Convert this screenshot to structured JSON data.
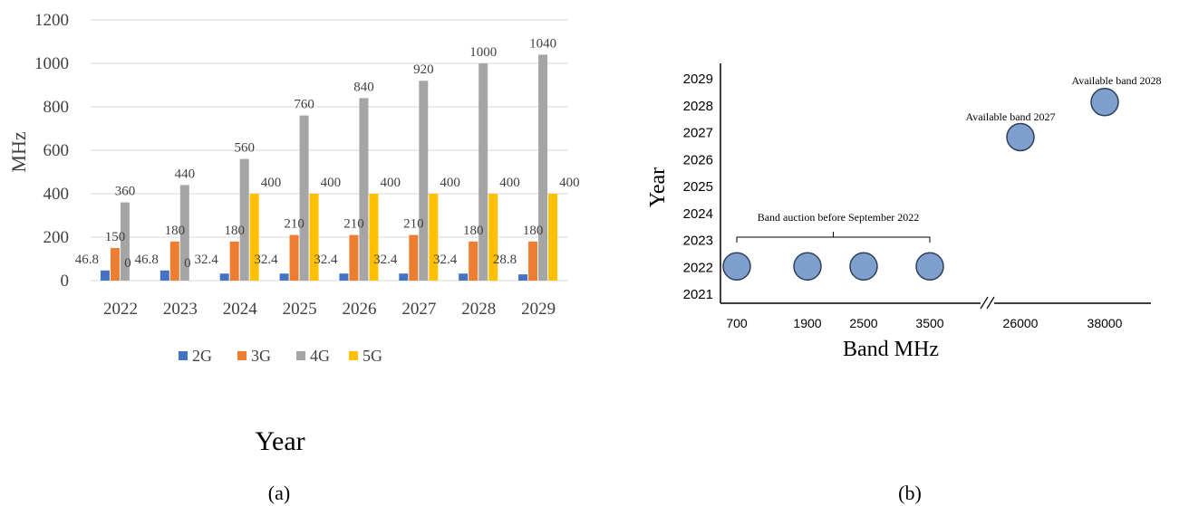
{
  "chart_data": [
    {
      "type": "bar",
      "ylabel": "MHz",
      "xlabel": "Year",
      "ylim": [
        0,
        1200
      ],
      "yticks": [
        0,
        200,
        400,
        600,
        800,
        1000,
        1200
      ],
      "grid": true,
      "legend_position": "bottom",
      "categories": [
        "2022",
        "2023",
        "2024",
        "2025",
        "2026",
        "2027",
        "2028",
        "2029"
      ],
      "series": [
        {
          "name": "2G",
          "color": "#4472C4",
          "values": [
            46.8,
            46.8,
            32.4,
            32.4,
            32.4,
            32.4,
            32.4,
            28.8
          ],
          "labels": [
            "46.8",
            "46.8",
            "32.4",
            "32.4",
            "32.4",
            "32.4",
            "32.4",
            "28.8"
          ]
        },
        {
          "name": "3G",
          "color": "#ED7D31",
          "values": [
            150,
            180,
            180,
            210,
            210,
            210,
            180,
            180
          ],
          "labels": [
            "150",
            "180",
            "180",
            "210",
            "210",
            "210",
            "180",
            "180"
          ]
        },
        {
          "name": "4G",
          "color": "#A5A5A5",
          "values": [
            360,
            440,
            560,
            760,
            840,
            920,
            1000,
            1040
          ],
          "labels": [
            "360",
            "440",
            "560",
            "760",
            "840",
            "920",
            "1000",
            "1040"
          ]
        },
        {
          "name": "5G",
          "color": "#FFC000",
          "values": [
            0,
            0,
            400,
            400,
            400,
            400,
            400,
            400
          ],
          "labels": [
            "0",
            "0",
            "400",
            "400",
            "400",
            "400",
            "400",
            "400"
          ]
        }
      ],
      "caption": "(a)"
    },
    {
      "type": "scatter",
      "ylabel": "Year",
      "xlabel": "Band MHz",
      "x_categories": [
        "700",
        "1900",
        "2500",
        "3500",
        "26000",
        "38000"
      ],
      "x_axis_break": "between 3500 and 26000",
      "yticks": [
        "2021",
        "2022",
        "2023",
        "2024",
        "2025",
        "2026",
        "2027",
        "2028",
        "2029"
      ],
      "ylim": [
        2021,
        2029
      ],
      "marker_color": "#7F9FCF",
      "points": [
        {
          "x": "700",
          "y": 2022
        },
        {
          "x": "1900",
          "y": 2022
        },
        {
          "x": "2500",
          "y": 2022
        },
        {
          "x": "3500",
          "y": 2022
        },
        {
          "x": "26000",
          "y": 2026.8
        },
        {
          "x": "38000",
          "y": 2028.1
        }
      ],
      "annotations": [
        {
          "text": "Band auction before September 2022",
          "bracket": [
            "700",
            "3500"
          ]
        },
        {
          "text": "Available band 2027",
          "x": "26000"
        },
        {
          "text": "Available band 2028",
          "x": "38000"
        }
      ],
      "caption": "(b)"
    }
  ]
}
